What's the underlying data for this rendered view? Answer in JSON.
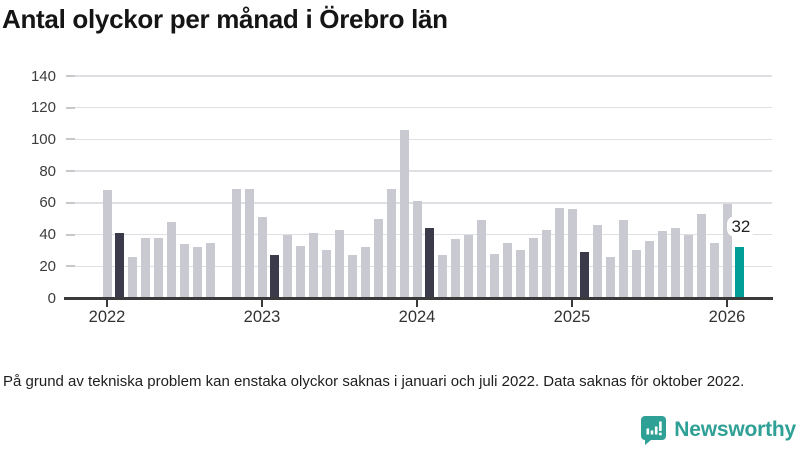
{
  "title": "Antal olyckor per månad i Örebro län",
  "footnote": "På grund av tekniska problem kan enstaka olyckor saknas i januari och juli 2022. Data saknas för oktober 2022.",
  "logo": {
    "label": "Newsworthy",
    "color": "#2fa095"
  },
  "chart_data": {
    "type": "bar",
    "title": "Antal olyckor per månad i Örebro län",
    "xlabel": "",
    "ylabel": "",
    "ylim": [
      0,
      140
    ],
    "yticks": [
      0,
      20,
      40,
      60,
      80,
      100,
      120,
      140
    ],
    "grid": true,
    "start_month": "2022-01",
    "year_labels": [
      "2022",
      "2023",
      "2024",
      "2025",
      "2026"
    ],
    "values": [
      68,
      41,
      26,
      38,
      38,
      48,
      34,
      32,
      35,
      null,
      69,
      69,
      51,
      27,
      40,
      33,
      41,
      30,
      43,
      27,
      32,
      50,
      69,
      106,
      61,
      44,
      27,
      37,
      40,
      49,
      28,
      35,
      30,
      38,
      43,
      57,
      56,
      29,
      46,
      26,
      49,
      30,
      36,
      42,
      44,
      40,
      53,
      35,
      59,
      32
    ],
    "missing_months": [
      "2022-10"
    ],
    "highlight_dark_indices": [
      1,
      13,
      25,
      37
    ],
    "highlight_accent_index": 49,
    "annotation": {
      "text": "32",
      "index": 49
    },
    "colors": {
      "bar": "#c9c9d2",
      "dark": "#3a3a4b",
      "accent": "#009e96",
      "grid": "#e0e0e4",
      "axis": "#3a3a3a"
    }
  }
}
